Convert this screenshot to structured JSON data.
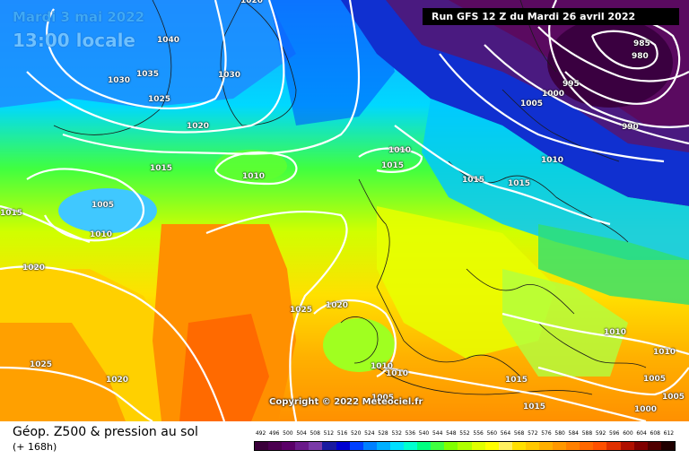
{
  "header": {
    "date_label": "Mardi 3 mai 2022",
    "time_label": "13:00 locale",
    "run_label": "Run GFS 12 Z du Mardi 26 avril 2022"
  },
  "copyright": "Copyright © 2022 Meteociel.fr",
  "footer": {
    "title": "Géop. Z500 & pression au sol",
    "subtitle": "(+ 168h)"
  },
  "legend": {
    "values": [
      "492",
      "496",
      "500",
      "504",
      "508",
      "512",
      "516",
      "520",
      "524",
      "528",
      "532",
      "536",
      "540",
      "544",
      "548",
      "552",
      "556",
      "560",
      "564",
      "568",
      "572",
      "576",
      "580",
      "584",
      "588",
      "592",
      "596",
      "600",
      "604",
      "608",
      "612"
    ],
    "colors": [
      "#3a003a",
      "#4b0050",
      "#5a0068",
      "#6a1a8a",
      "#7a3aa8",
      "#1a1aa0",
      "#0000d0",
      "#0040ff",
      "#0080ff",
      "#00b0ff",
      "#00e0ff",
      "#00ffd0",
      "#00ff80",
      "#40ff40",
      "#80ff00",
      "#b0ff00",
      "#e0ff00",
      "#ffff00",
      "#fff060",
      "#ffe000",
      "#ffc800",
      "#ffb000",
      "#ff9800",
      "#ff8000",
      "#ff6800",
      "#ff5000",
      "#e03000",
      "#b01000",
      "#800000",
      "#500000",
      "#200000"
    ]
  },
  "isobars": [
    {
      "text": "1020",
      "id": "iso-1020-a"
    },
    {
      "text": "1040",
      "id": "iso-1040"
    },
    {
      "text": "1035",
      "id": "iso-1035"
    },
    {
      "text": "1030",
      "id": "iso-1030-a"
    },
    {
      "text": "1030",
      "id": "iso-1030-b"
    },
    {
      "text": "1025",
      "id": "iso-1025-a"
    },
    {
      "text": "1020",
      "id": "iso-1020-b"
    },
    {
      "text": "1015",
      "id": "iso-1015-a"
    },
    {
      "text": "1010",
      "id": "iso-1010-a"
    },
    {
      "text": "1010",
      "id": "iso-1010-b"
    },
    {
      "text": "1015",
      "id": "iso-1015-b"
    },
    {
      "text": "1005",
      "id": "iso-1005-a"
    },
    {
      "text": "1010",
      "id": "iso-1010-c"
    },
    {
      "text": "1015",
      "id": "iso-1015-c"
    },
    {
      "text": "1020",
      "id": "iso-1020-c"
    },
    {
      "text": "1025",
      "id": "iso-1025-b"
    },
    {
      "text": "1020",
      "id": "iso-1020-d"
    },
    {
      "text": "1025",
      "id": "iso-1025-c"
    },
    {
      "text": "1020",
      "id": "iso-1020-e"
    },
    {
      "text": "1010",
      "id": "iso-1010-d"
    },
    {
      "text": "1010",
      "id": "iso-1010-e"
    },
    {
      "text": "1005",
      "id": "iso-1005-b"
    },
    {
      "text": "1015",
      "id": "iso-1015-d"
    },
    {
      "text": "1015",
      "id": "iso-1015-e"
    },
    {
      "text": "1015",
      "id": "iso-1015-f"
    },
    {
      "text": "1015",
      "id": "iso-1015-g"
    },
    {
      "text": "985",
      "id": "iso-985"
    },
    {
      "text": "980",
      "id": "iso-980"
    },
    {
      "text": "995",
      "id": "iso-995"
    },
    {
      "text": "1000",
      "id": "iso-1000-a"
    },
    {
      "text": "1005",
      "id": "iso-1005-c"
    },
    {
      "text": "990",
      "id": "iso-990"
    },
    {
      "text": "1010",
      "id": "iso-1010-f"
    },
    {
      "text": "1010",
      "id": "iso-1010-g"
    },
    {
      "text": "1010",
      "id": "iso-1010-h"
    },
    {
      "text": "1005",
      "id": "iso-1005-d"
    },
    {
      "text": "1005",
      "id": "iso-1005-e"
    },
    {
      "text": "1000",
      "id": "iso-1000-b"
    }
  ]
}
